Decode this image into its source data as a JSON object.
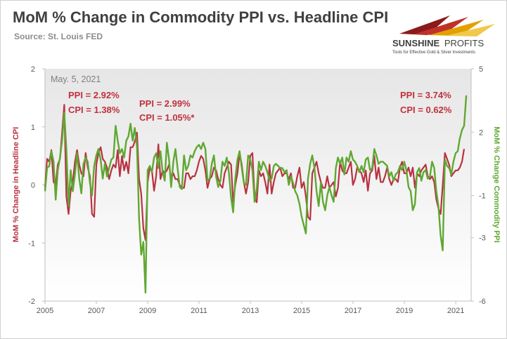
{
  "header": {
    "title": "MoM % Change in Commodity PPI vs. Headline CPI",
    "source": "Source: St. Louis FED"
  },
  "logo": {
    "brand_bold": "SUNSHINE",
    "brand_light": "PROFITS",
    "tagline": "Tools for Effective Gold & Silver Investments",
    "colors": {
      "dark": "#8b1a1a",
      "mid": "#c0312a",
      "gold": "#e2a100",
      "light": "#f2c84b"
    }
  },
  "chart_data": {
    "type": "line",
    "title": "MoM % Change in Commodity PPI vs. Headline CPI",
    "source": "Source: St. Louis FED",
    "ylabel_left": "MoM % Change in Headline CPI",
    "ylabel_right": "MoM % Change Commodity PPI",
    "ylim_left": [
      -2,
      2
    ],
    "yticks_left": [
      2,
      1,
      0,
      -1,
      -2
    ],
    "ylim_right": [
      -6,
      5
    ],
    "yticks_right": [
      5,
      2,
      -1,
      -3,
      -6
    ],
    "xlim": [
      2005,
      2021.6
    ],
    "xticks": [
      2005,
      2007,
      2009,
      2011,
      2013,
      2015,
      2017,
      2019,
      2021
    ],
    "grid": false,
    "date_label": "May. 5, 2021",
    "colors": {
      "cpi": "#b83240",
      "ppi": "#5fa832",
      "annotation": "#c0313d"
    },
    "annotations": [
      {
        "ppi_text": "PPI = 2.92%",
        "cpi_text": "CPI = 1.38%"
      },
      {
        "ppi_text": "PPI = 2.99%",
        "cpi_text": "CPI = 1.05%*"
      },
      {
        "ppi_text": "PPI = 3.74%",
        "cpi_text": "CPI = 0.62%"
      }
    ],
    "series": [
      {
        "name": "Headline CPI",
        "axis": "left",
        "x_start": 2005.0,
        "step": 0.0833,
        "values": [
          -0.05,
          0.45,
          0.4,
          0.6,
          0.05,
          0.0,
          0.35,
          0.45,
          0.9,
          1.38,
          -0.2,
          -0.5,
          -0.1,
          0.05,
          0.4,
          0.6,
          0.35,
          0.2,
          0.15,
          0.55,
          0.3,
          0.15,
          -0.5,
          -0.55,
          0.35,
          0.55,
          0.65,
          0.45,
          0.4,
          0.3,
          0.1,
          0.25,
          0.35,
          0.3,
          0.6,
          0.15,
          0.5,
          0.25,
          0.4,
          0.2,
          0.65,
          0.65,
          0.75,
          0.9,
          0.1,
          -0.15,
          -0.75,
          -0.95,
          0.05,
          0.3,
          0.25,
          -0.1,
          0.15,
          0.7,
          0.1,
          0.25,
          0.2,
          0.25,
          0.35,
          0.1,
          0.2,
          0.1,
          0.1,
          0.0,
          -0.05,
          -0.05,
          0.2,
          0.2,
          0.1,
          0.15,
          0.15,
          0.25,
          0.4,
          0.5,
          0.45,
          0.25,
          -0.05,
          0.1,
          0.15,
          0.3,
          0.25,
          0.1,
          0.0,
          -0.05,
          0.2,
          0.3,
          0.4,
          0.35,
          -0.3,
          0.0,
          0.2,
          0.55,
          0.35,
          0.05,
          -0.15,
          0.05,
          0.5,
          0.55,
          -0.2,
          -0.3,
          0.25,
          0.15,
          0.2,
          0.05,
          -0.15,
          0.35,
          -0.15,
          0.05,
          0.2,
          0.25,
          0.3,
          0.15,
          0.2,
          0.2,
          0.1,
          0.2,
          -0.05,
          -0.05,
          0.15,
          0.3,
          -0.05,
          0.05,
          -0.2,
          -0.55,
          -0.6,
          0.2,
          0.3,
          0.4,
          0.2,
          0.05,
          -0.05,
          -0.05,
          0.15,
          -0.05,
          0.0,
          0.05,
          -0.2,
          -0.05,
          0.4,
          0.25,
          0.2,
          0.2,
          0.3,
          0.4,
          0.0,
          0.1,
          0.3,
          0.25,
          0.2,
          0.05,
          0.25,
          -0.1,
          0.2,
          0.25,
          0.5,
          0.1,
          0.3,
          0.05,
          0.05,
          0.15,
          0.3,
          0.1,
          0.0,
          0.1,
          0.1,
          0.05,
          0.3,
          0.4,
          0.2,
          0.2,
          0.3,
          0.15,
          0.3,
          -0.05,
          0.2,
          0.15,
          0.25,
          0.3,
          0.35,
          0.15,
          0.1,
          0.15,
          0.05,
          -0.25,
          -0.4,
          -0.5,
          0.0,
          0.55,
          0.45,
          0.35,
          0.15,
          0.2,
          0.25,
          0.25,
          0.3,
          0.4,
          0.62
        ]
      },
      {
        "name": "Commodity PPI",
        "axis": "right",
        "x_start": 2005.0,
        "step": 0.0833,
        "values": [
          -0.8,
          0.3,
          0.4,
          1.1,
          0.6,
          -1.2,
          0.2,
          0.8,
          1.6,
          2.92,
          1.2,
          -1.5,
          0.2,
          -0.8,
          0.0,
          1.0,
          -0.2,
          -0.9,
          0.5,
          0.8,
          0.6,
          -0.4,
          -1.0,
          0.4,
          0.9,
          1.2,
          0.7,
          -0.2,
          0.5,
          -0.1,
          0.3,
          0.7,
          0.8,
          2.3,
          1.6,
          1.0,
          1.2,
          0.8,
          1.6,
          1.8,
          2.4,
          1.6,
          2.2,
          1.3,
          -2.1,
          -3.8,
          -3.2,
          -5.6,
          0.2,
          0.4,
          0.1,
          0.8,
          1.0,
          0.3,
          1.1,
          0.1,
          -0.3,
          1.5,
          0.7,
          -0.6,
          0.6,
          1.2,
          0.3,
          -0.6,
          -0.7,
          0.9,
          0.2,
          0.4,
          0.9,
          0.8,
          1.1,
          1.3,
          1.4,
          1.2,
          1.5,
          1.2,
          -0.3,
          -0.2,
          0.5,
          0.9,
          -0.1,
          -0.6,
          -0.3,
          0.6,
          0.4,
          0.8,
          0.1,
          -1.1,
          -1.8,
          -0.2,
          0.7,
          1.1,
          0.3,
          -0.4,
          -0.5,
          0.9,
          0.7,
          0.2,
          -1.3,
          -0.7,
          0.6,
          0.2,
          0.6,
          0.4,
          0.1,
          -0.3,
          -0.2,
          0.4,
          0.5,
          0.4,
          0.3,
          0.3,
          0.1,
          0.2,
          -0.5,
          -0.1,
          -0.4,
          -0.8,
          -1.0,
          -1.4,
          -2.0,
          -2.4,
          -2.8,
          -0.2,
          0.5,
          0.9,
          0.3,
          -0.8,
          -1.5,
          -0.4,
          -1.3,
          -1.7,
          -1.0,
          -0.6,
          -1.0,
          -1.3,
          0.3,
          0.8,
          0.5,
          0.8,
          0.0,
          0.8,
          0.6,
          1.1,
          0.7,
          0.6,
          0.4,
          0.1,
          0.4,
          0.1,
          0.7,
          0.8,
          0.2,
          0.3,
          1.2,
          0.9,
          0.5,
          0.6,
          0.6,
          0.5,
          0.4,
          -0.1,
          0.1,
          -0.3,
          0.0,
          0.1,
          0.4,
          0.2,
          0.6,
          0.2,
          -0.6,
          -0.8,
          -1.7,
          -1.4,
          0.1,
          0.3,
          -0.3,
          0.1,
          0.2,
          -0.2,
          -0.1,
          0.6,
          0.3,
          -0.8,
          -1.5,
          -2.9,
          -3.6,
          0.7,
          0.4,
          0.3,
          0.0,
          0.6,
          1.0,
          1.1,
          1.7,
          2.1,
          2.3,
          3.74
        ]
      }
    ]
  }
}
